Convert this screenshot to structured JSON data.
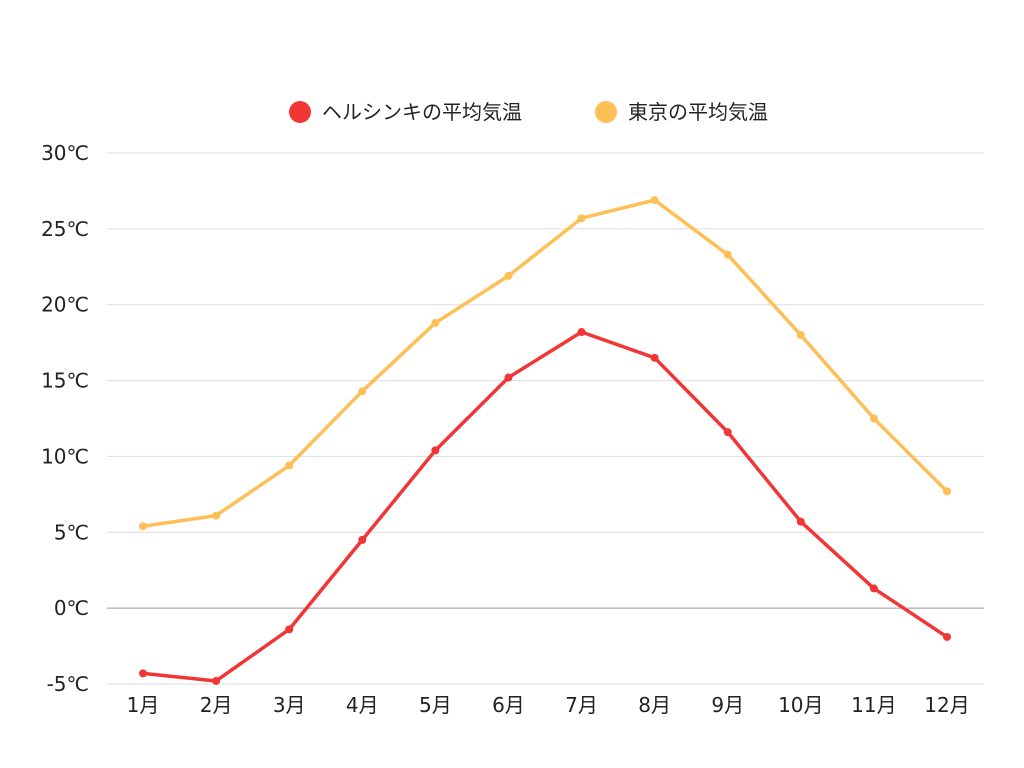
{
  "chart_data": {
    "type": "line",
    "title": "",
    "xlabel": "",
    "ylabel": "",
    "categories": [
      "1月",
      "2月",
      "3月",
      "4月",
      "5月",
      "6月",
      "7月",
      "8月",
      "9月",
      "10月",
      "11月",
      "12月"
    ],
    "series": [
      {
        "name": "ヘルシンキの平均気温",
        "color": "#f23636",
        "values": [
          -4.3,
          -4.8,
          -1.4,
          4.5,
          10.4,
          15.2,
          18.2,
          16.5,
          11.6,
          5.7,
          1.3,
          -1.9
        ]
      },
      {
        "name": "東京の平均気温",
        "color": "#fdbf56",
        "values": [
          5.4,
          6.1,
          9.4,
          14.3,
          18.8,
          21.9,
          25.7,
          26.9,
          23.3,
          18.0,
          12.5,
          7.7
        ]
      }
    ],
    "ylim": [
      -5,
      30
    ],
    "yticks": [
      -5,
      0,
      5,
      10,
      15,
      20,
      25,
      30
    ],
    "ytick_labels": [
      "-5℃",
      "0℃",
      "5℃",
      "10℃",
      "15℃",
      "20℃",
      "25℃",
      "30℃"
    ],
    "grid": true,
    "legend_position": "top-center"
  }
}
